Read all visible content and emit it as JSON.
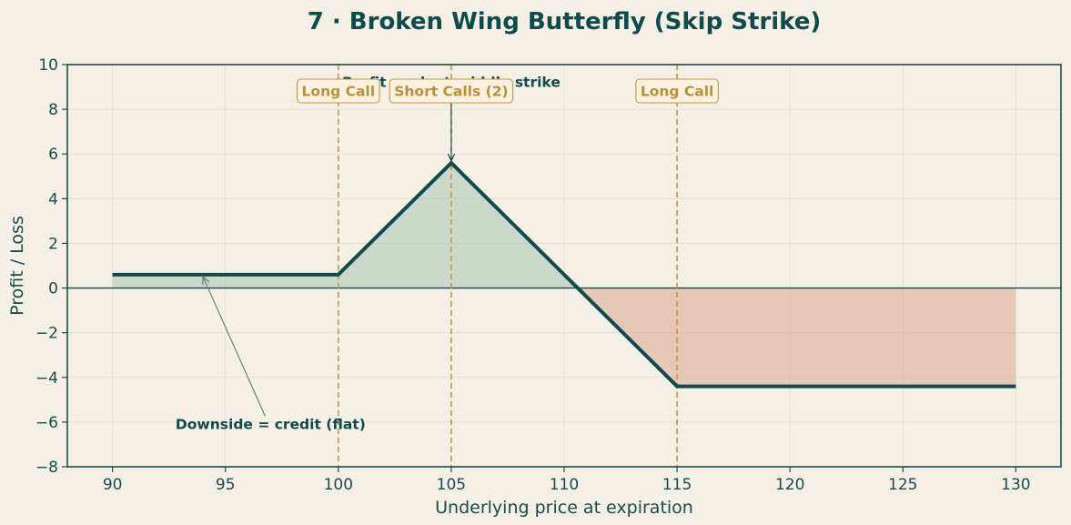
{
  "colors": {
    "background": "#f5f0e6",
    "payoff_line": "#0f4a4c",
    "profit_fill": "#a9c4b3",
    "loss_fill": "#d9a892",
    "strike_line": "#c8963e",
    "strike_label_text": "#b8913a",
    "strike_label_border": "#c8963e",
    "grid": "#e2dccb",
    "axis": "#1a4c4d",
    "arrow": "#5f8a78"
  },
  "chart_data": {
    "type": "line",
    "title": "7 · Broken Wing Butterfly (Skip Strike)",
    "xlabel": "Underlying price at expiration",
    "ylabel": "Profit / Loss",
    "xlim": [
      88,
      132
    ],
    "ylim": [
      -8,
      10
    ],
    "xticks": [
      90,
      95,
      100,
      105,
      110,
      115,
      120,
      125,
      130
    ],
    "yticks": [
      -8,
      -6,
      -4,
      -2,
      0,
      2,
      4,
      6,
      8,
      10
    ],
    "ytick_labels": [
      "−8",
      "−6",
      "−4",
      "−2",
      "0",
      "2",
      "4",
      "6",
      "8",
      "10"
    ],
    "grid": true,
    "series": [
      {
        "x": [
          90,
          100,
          105,
          115,
          130
        ],
        "y": [
          0.6,
          0.6,
          5.6,
          -4.4,
          -4.4
        ]
      }
    ],
    "strikes": [
      {
        "x": 100,
        "label": "Long Call"
      },
      {
        "x": 105,
        "label": "Short Calls (2)"
      },
      {
        "x": 115,
        "label": "Long Call"
      }
    ],
    "annotations": [
      {
        "text": "Profit peak at middle strike",
        "point": [
          105,
          5.6
        ],
        "text_at": [
          105,
          9.0
        ]
      },
      {
        "text": "Downside = credit (flat)",
        "point": [
          94,
          0.6
        ],
        "text_at": [
          97,
          -6.3
        ]
      }
    ]
  }
}
